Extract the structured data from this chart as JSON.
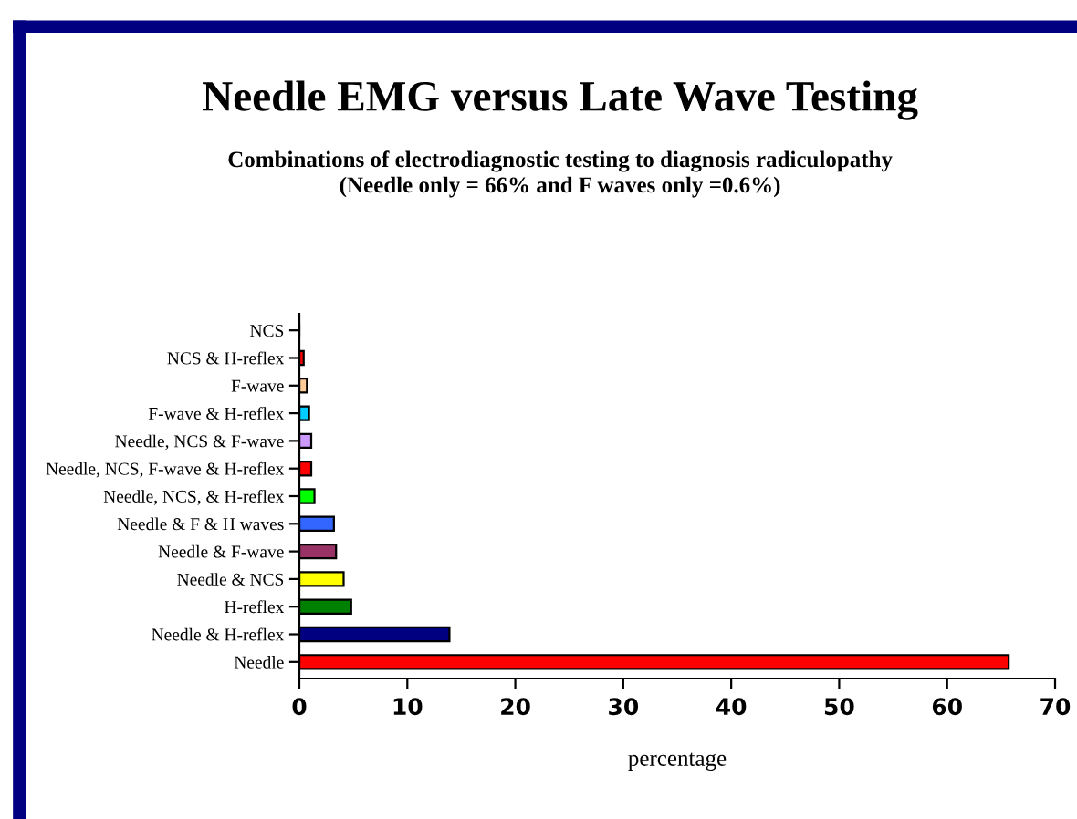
{
  "chart_data": {
    "type": "bar",
    "orientation": "horizontal",
    "title": "Needle EMG versus Late Wave Testing",
    "subtitle": "Combinations of electrodiagnostic testing to diagnosis radiculopathy\n(Needle only = 66% and F waves only =0.6%)",
    "xlabel": "percentage",
    "categories": [
      "NCS",
      "NCS & H-reflex",
      "F-wave",
      "F-wave & H-reflex",
      "Needle, NCS & F-wave",
      "Needle, NCS, F-wave & H-reflex",
      "Needle, NCS, & H-reflex",
      "Needle & F & H waves",
      "Needle & F-wave",
      "Needle & NCS",
      "H-reflex",
      "Needle & H-reflex",
      "Needle"
    ],
    "values": [
      0,
      0.4,
      0.7,
      0.9,
      1.1,
      1.1,
      1.4,
      3.2,
      3.4,
      4.1,
      4.8,
      13.9,
      65.7
    ],
    "colors": [
      "#ff0000",
      "#ff0000",
      "#ffcc99",
      "#00ccff",
      "#cc99ff",
      "#ff0000",
      "#00ff00",
      "#3366ff",
      "#993366",
      "#ffff00",
      "#008000",
      "#000080",
      "#ff0000"
    ],
    "xlim": [
      0,
      70
    ],
    "xticks": [
      0,
      10,
      20,
      30,
      40,
      50,
      60,
      70
    ],
    "grid": false,
    "legend": false
  }
}
